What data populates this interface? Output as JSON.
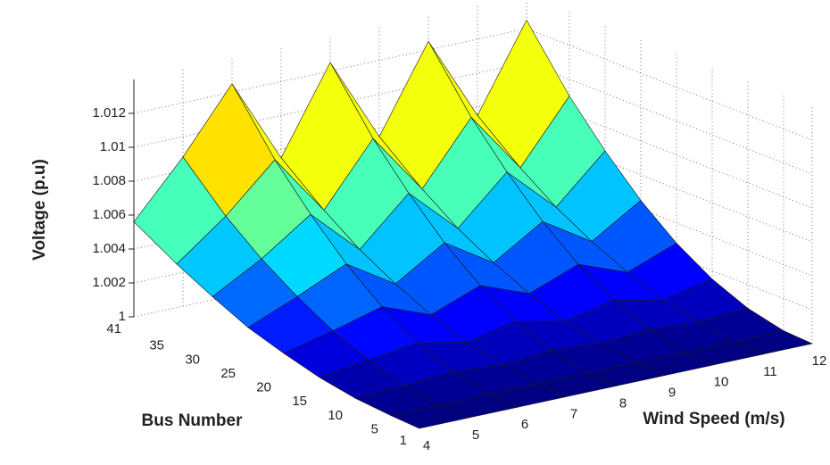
{
  "chart_data": {
    "type": "surface",
    "x_label": "Wind Speed (m/s)",
    "y_label": "Bus Number",
    "z_label": "Voltage (p.u)",
    "x": [
      4,
      5,
      6,
      7,
      8,
      9,
      10,
      11,
      12
    ],
    "y": [
      1,
      5,
      10,
      15,
      20,
      25,
      30,
      35,
      41
    ],
    "z": [
      [
        1,
        1,
        1,
        1,
        1,
        1,
        1,
        1,
        1
      ],
      [
        1.0001,
        1.0001,
        1.0001,
        1.0001,
        1.0001,
        1.0001,
        1.0001,
        1.0001,
        1.0001
      ],
      [
        1.0003,
        1.0004,
        1.0006,
        1.0004,
        1.0006,
        1.0004,
        1.0006,
        1.0004,
        1.0006
      ],
      [
        1.0007,
        1.0011,
        1.0015,
        1.0009,
        1.0015,
        1.0009,
        1.0015,
        1.0009,
        1.0015
      ],
      [
        1.0013,
        1.002,
        1.0028,
        1.0017,
        1.0028,
        1.0017,
        1.0028,
        1.0017,
        1.0028
      ],
      [
        1.002,
        1.0032,
        1.0045,
        1.0027,
        1.0045,
        1.0027,
        1.0045,
        1.0027,
        1.0045
      ],
      [
        1.003,
        1.0046,
        1.0066,
        1.0039,
        1.0066,
        1.0039,
        1.0066,
        1.0039,
        1.0066
      ],
      [
        1.0041,
        1.0063,
        1.009,
        1.0054,
        1.009,
        1.0054,
        1.009,
        1.0054,
        1.009
      ],
      [
        1.0056,
        1.0088,
        1.0125,
        1.0075,
        1.0125,
        1.0075,
        1.0125,
        1.0075,
        1.0125
      ]
    ],
    "xlim": [
      4,
      12
    ],
    "ylim": [
      1,
      41
    ],
    "zlim": [
      1,
      1.014
    ],
    "xticks": [
      4,
      5,
      6,
      7,
      8,
      9,
      10,
      11,
      12
    ],
    "yticks": [
      1,
      5,
      10,
      15,
      20,
      25,
      30,
      35,
      41
    ],
    "zticks": [
      1,
      1.002,
      1.004,
      1.006,
      1.008,
      1.01,
      1.012
    ],
    "colormap": "jet",
    "grid": true
  }
}
